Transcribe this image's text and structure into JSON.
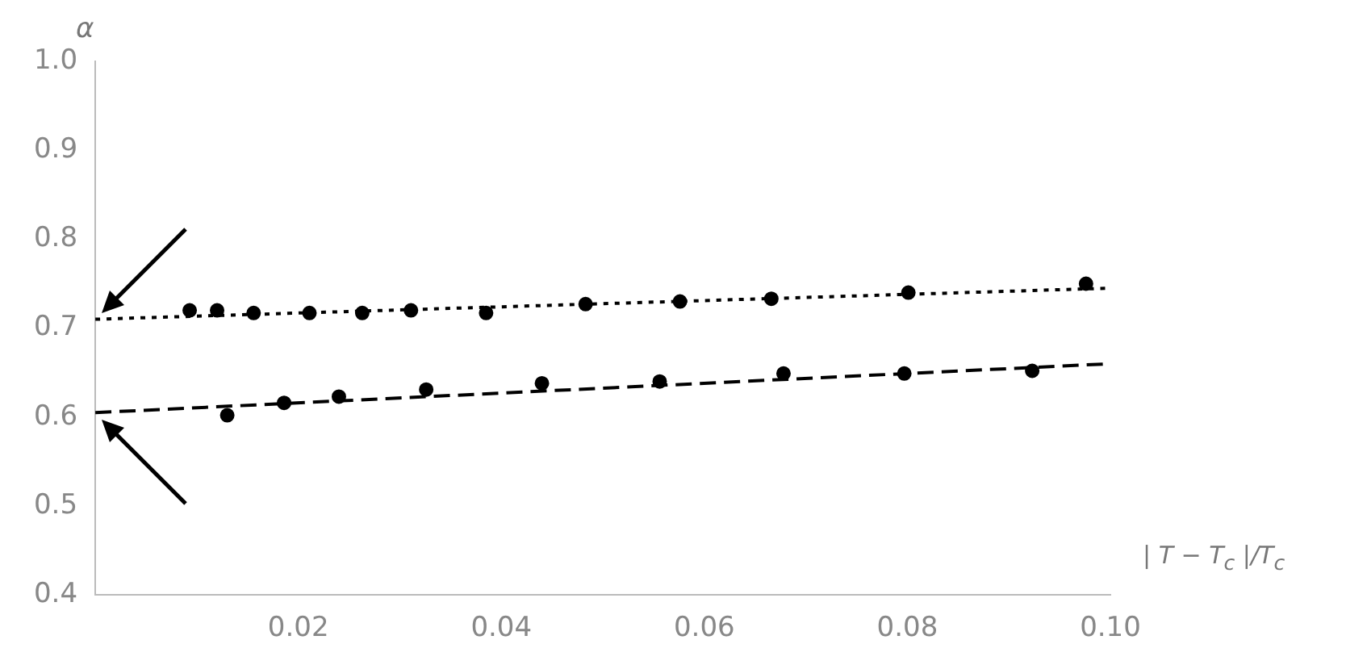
{
  "chart_data": {
    "type": "scatter",
    "xlabel": "| T − T$_{c}$ |/T$_{c}$",
    "ylabel": "α",
    "xlim": [
      0,
      0.1
    ],
    "ylim": [
      0.4,
      1.0
    ],
    "xticks": [
      0.02,
      0.04,
      0.06,
      0.08,
      {
        "value": 0.1,
        "label": "0.10"
      }
    ],
    "yticks": [
      0.4,
      0.5,
      0.6,
      0.7,
      0.8,
      0.9,
      {
        "value": 1.0,
        "label": "1.0"
      }
    ],
    "grid": false,
    "legend": false,
    "marker": "circle",
    "series": [
      {
        "color": "#000000",
        "x": [
          0.0093,
          0.012,
          0.0156,
          0.0211,
          0.0263,
          0.0311,
          0.0385,
          0.0483,
          0.0576,
          0.0666,
          0.0801,
          0.0976
        ],
        "values": [
          0.72,
          0.72,
          0.717,
          0.717,
          0.717,
          0.72,
          0.717,
          0.727,
          0.73,
          0.733,
          0.74,
          0.75
        ]
      },
      {
        "color": "#000000",
        "x": [
          0.013,
          0.0186,
          0.024,
          0.0326,
          0.044,
          0.0556,
          0.0678,
          0.0797,
          0.0923
        ],
        "values": [
          0.602,
          0.616,
          0.623,
          0.631,
          0.638,
          0.64,
          0.649,
          0.649,
          0.652
        ]
      },
      {
        "type": "line",
        "color": "#000000",
        "line_style": "dotted",
        "marker": "none",
        "x": [
          0,
          0.1
        ],
        "values": [
          0.71,
          0.745
        ]
      },
      {
        "type": "line",
        "color": "#000000",
        "line_style": "dashed",
        "marker": "none",
        "x": [
          0,
          0.1
        ],
        "values": [
          0.605,
          0.66
        ]
      }
    ]
  }
}
